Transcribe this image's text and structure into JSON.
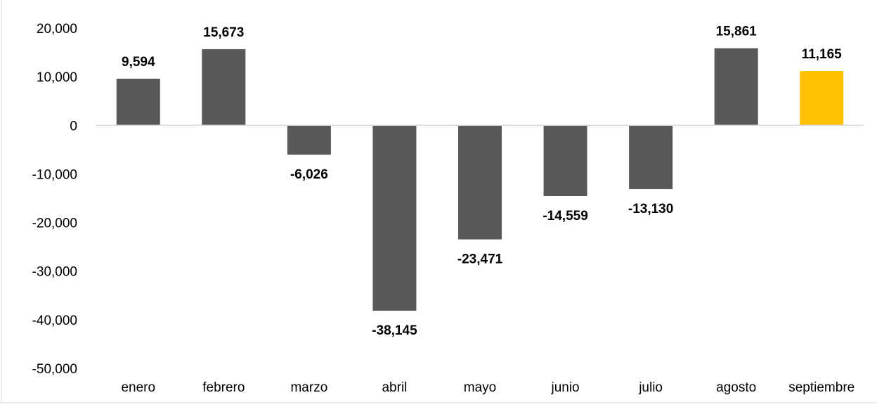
{
  "chart_data": {
    "type": "bar",
    "title": "",
    "xlabel": "",
    "ylabel": "",
    "categories": [
      "enero",
      "febrero",
      "marzo",
      "abril",
      "mayo",
      "junio",
      "julio",
      "agosto",
      "septiembre"
    ],
    "values": [
      9594,
      15673,
      -6026,
      -38145,
      -23471,
      -14559,
      -13130,
      15861,
      11165
    ],
    "value_labels": [
      "9,594",
      "15,673",
      "-6,026",
      "-38,145",
      "-23,471",
      "-14,559",
      "-13,130",
      "15,861",
      "11,165"
    ],
    "ylim": [
      -50000,
      20000
    ],
    "yticks": [
      20000,
      10000,
      0,
      -10000,
      -20000,
      -30000,
      -40000,
      -50000
    ],
    "ytick_labels": [
      "20,000",
      "10,000",
      "0",
      "-10,000",
      "-20,000",
      "-30,000",
      "-40,000",
      "-50,000"
    ],
    "grid": false,
    "legend": "none",
    "colors": {
      "default": "#595959",
      "highlight": "#FFC000",
      "axis": "#D9D9D9"
    },
    "highlight_index": 8
  }
}
